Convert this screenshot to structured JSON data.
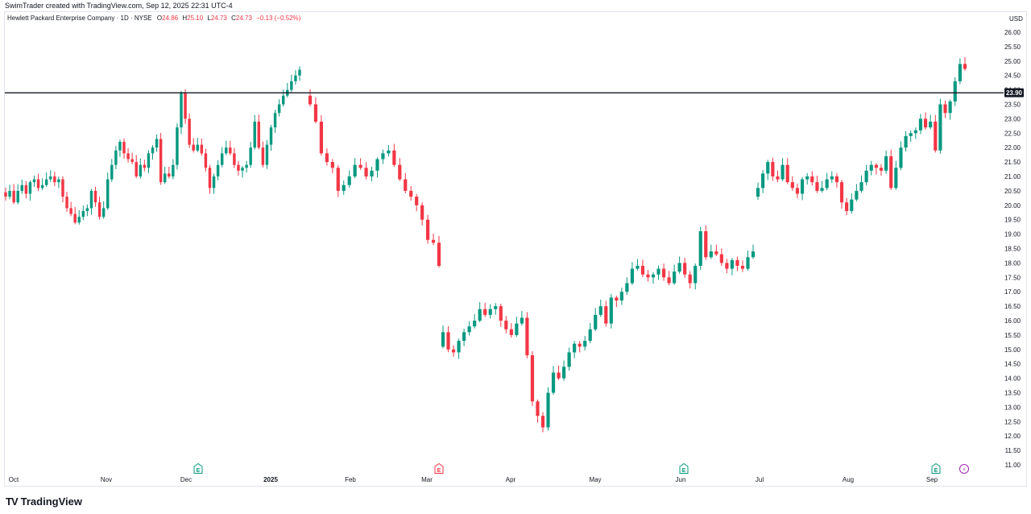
{
  "credit": "SwimTrader created with TradingView.com, Sep 12, 2025 22:31 UTC-4",
  "legend": {
    "symbol": "Hewlett Packard Enterprise Company · 1D · NYSE",
    "open_label": "O",
    "open": "24.86",
    "high_label": "H",
    "high": "25.10",
    "low_label": "L",
    "low": "24.73",
    "close_label": "C",
    "close": "24.73",
    "change": "−0.13 (−0.52%)"
  },
  "currency": "USD",
  "brand": {
    "logo_text": "TV",
    "name": "TradingView"
  },
  "colors": {
    "up": "#089981",
    "down": "#f23645",
    "level": "#131722",
    "earnings_badge": "#089981",
    "earnings_badge_down": "#f23645",
    "dividend_badge": "#9c27b0"
  },
  "chart_data": {
    "type": "candlestick",
    "title": "Hewlett Packard Enterprise Company · 1D · NYSE",
    "x_labels": [
      "Oct",
      "Nov",
      "Dec",
      "2025",
      "Feb",
      "Mar",
      "Apr",
      "May",
      "Jun",
      "Jul",
      "Aug",
      "Sep"
    ],
    "y_ticks": [
      "11.00",
      "11.50",
      "12.00",
      "12.50",
      "13.00",
      "13.50",
      "14.00",
      "14.50",
      "15.00",
      "15.50",
      "16.00",
      "16.50",
      "17.00",
      "17.50",
      "18.00",
      "18.50",
      "19.00",
      "19.50",
      "20.00",
      "20.50",
      "21.00",
      "21.50",
      "22.00",
      "22.50",
      "23.00",
      "23.50",
      "24.00",
      "24.50",
      "25.00",
      "25.50",
      "26.00"
    ],
    "ylim": [
      11,
      26
    ],
    "horizontal_level": {
      "value": 23.9,
      "label": "23.90"
    },
    "events": [
      {
        "type": "earnings",
        "glyph": "E",
        "near": "Dec",
        "direction": "up"
      },
      {
        "type": "earnings",
        "glyph": "E",
        "near": "Mar",
        "direction": "down"
      },
      {
        "type": "earnings",
        "glyph": "E",
        "near": "Jun",
        "direction": "up"
      },
      {
        "type": "earnings",
        "glyph": "E",
        "near": "Sep",
        "direction": "up"
      },
      {
        "type": "dividend",
        "glyph": "⚡",
        "near": "Sep"
      }
    ],
    "segments": [
      {
        "from": 20.45,
        "path": [
          20.3,
          20.5,
          20.1,
          20.5,
          20.7,
          20.4,
          20.8,
          20.9,
          20.6,
          20.7,
          20.9,
          21.0,
          20.8,
          20.9,
          20.3,
          19.9,
          19.7,
          19.4,
          19.6,
          19.8,
          19.9,
          20.5,
          20.1,
          19.6,
          19.9,
          20.9,
          21.4,
          21.9,
          22.2,
          21.8,
          21.6,
          21.5,
          21.0,
          21.4,
          21.3,
          21.8,
          22.0,
          22.3,
          20.8,
          21.1,
          21.0,
          21.4,
          22.7,
          23.9,
          23.0,
          22.1,
          21.9,
          22.1,
          21.8,
          21.3,
          20.6,
          21.0,
          21.4,
          21.8,
          22.0,
          21.8,
          21.4,
          21.2,
          21.3,
          21.4,
          22.0,
          22.9,
          22.0,
          21.4,
          22.1,
          22.7,
          23.2,
          23.5,
          23.8,
          24.0,
          24.3,
          24.5,
          24.7
        ]
      },
      {
        "from": 23.8,
        "path": [
          23.5,
          22.9,
          21.8,
          21.5,
          21.3,
          20.5,
          20.7,
          21.0,
          21.4,
          21.3,
          21.0,
          21.2,
          21.6,
          21.8,
          21.9,
          21.4,
          20.9,
          20.5,
          20.3,
          20.0,
          19.5,
          18.8,
          18.7,
          17.9
        ]
      },
      {
        "from": 15.1,
        "path": [
          15.6,
          15.0,
          14.9,
          15.3,
          15.6,
          15.8,
          16.0,
          16.4,
          16.2,
          16.4,
          16.5,
          16.0,
          15.7,
          15.5,
          15.9,
          16.1,
          14.8,
          13.2,
          12.7,
          12.3,
          13.5,
          14.2,
          14.0,
          14.4,
          14.9,
          15.2,
          15.1,
          15.3,
          15.7,
          16.2,
          16.5,
          15.9,
          16.8,
          16.7,
          17.0,
          17.3,
          17.8,
          17.9,
          17.6,
          17.5,
          17.6,
          17.8,
          17.5,
          17.3,
          17.7,
          18.0,
          17.6,
          17.3,
          17.9,
          19.1,
          18.2,
          18.4,
          18.3,
          18.0,
          17.8,
          18.1,
          17.9,
          17.8,
          18.2,
          18.4
        ]
      },
      {
        "from": 20.3,
        "path": [
          20.6,
          21.1,
          21.5,
          21.0,
          20.9,
          21.4,
          20.8,
          20.6,
          20.4,
          20.9,
          21.0,
          20.8,
          20.5,
          20.6,
          20.9,
          21.0,
          20.8,
          20.1,
          19.8,
          20.2,
          20.5,
          20.8,
          21.2,
          21.4,
          21.3,
          21.2,
          21.7,
          20.6,
          21.3,
          22.0,
          22.4,
          22.5,
          22.6,
          23.0,
          22.7,
          22.9,
          21.9,
          23.5,
          23.2,
          23.6,
          24.3,
          24.9,
          24.73
        ]
      }
    ]
  }
}
